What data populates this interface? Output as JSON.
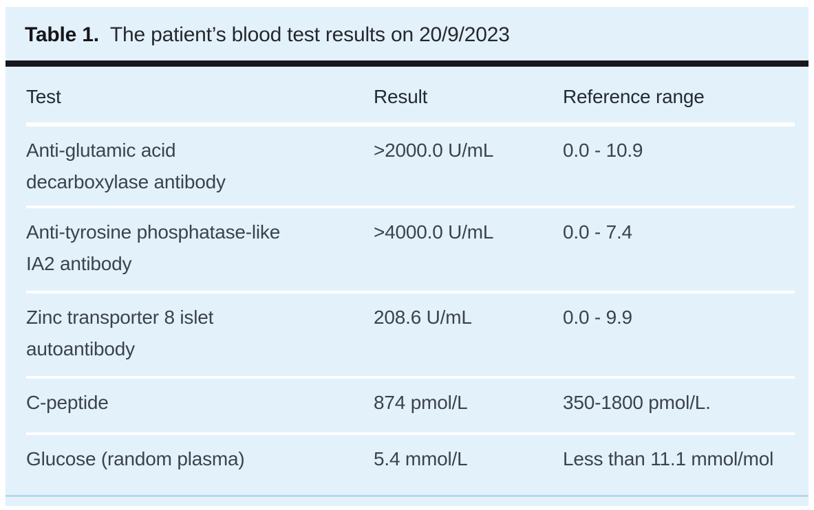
{
  "title": {
    "label": "Table 1.",
    "text": "The patient’s blood test results on 20/9/2023"
  },
  "table": {
    "columns": [
      "Test",
      "Result",
      "Reference range"
    ],
    "rows": [
      {
        "test": "Anti-glutamic acid\ndecarboxylase antibody",
        "result": ">2000.0 U/mL",
        "reference": "0.0 - 10.9"
      },
      {
        "test": "Anti-tyrosine phosphatase-like\nIA2 antibody",
        "result": ">4000.0 U/mL",
        "reference": "0.0 - 7.4"
      },
      {
        "test": "Zinc transporter 8 islet\nautoantibody",
        "result": "208.6 U/mL",
        "reference": "0.0 - 9.9"
      },
      {
        "test": "C-peptide",
        "result": "874 pmol/L",
        "reference": "350-1800 pmol/L."
      },
      {
        "test": "Glucose (random plasma)",
        "result": "5.4 mmol/L",
        "reference": "Less than 11.1 mmol/mol"
      }
    ]
  },
  "colors": {
    "panel_background": "#e3f1fb",
    "title_rule": "#17181c",
    "row_separator": "#ffffff",
    "bottom_rule": "#b7d8eb",
    "heading_text": "#232b35",
    "body_text": "#3b434d"
  }
}
